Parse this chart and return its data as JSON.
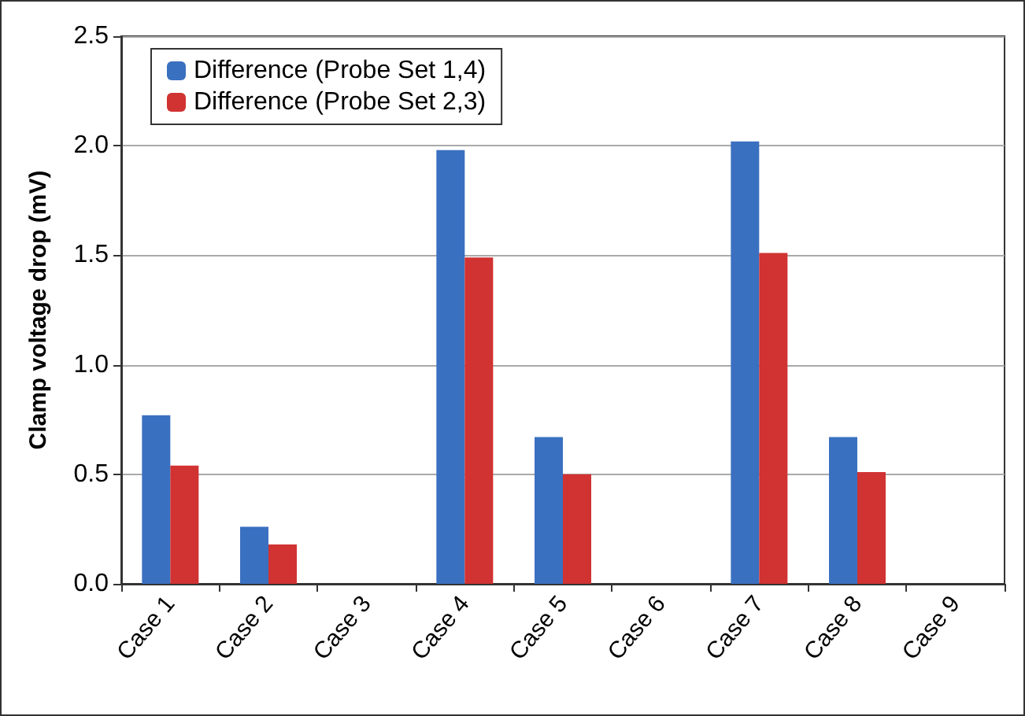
{
  "chart_data": {
    "type": "bar",
    "ylabel": "Clamp voltage drop (mV)",
    "categories": [
      "Case 1",
      "Case 2",
      "Case 3",
      "Case 4",
      "Case 5",
      "Case 6",
      "Case 7",
      "Case 8",
      "Case 9"
    ],
    "series": [
      {
        "name": "Difference (Probe Set 1,4)",
        "color": "#3a70c0",
        "values": [
          0.77,
          0.26,
          0,
          1.98,
          0.67,
          0,
          2.02,
          0.67,
          0
        ]
      },
      {
        "name": "Difference (Probe Set 2,3)",
        "color": "#d13232",
        "values": [
          0.54,
          0.18,
          0,
          1.49,
          0.5,
          0,
          1.51,
          0.51,
          0
        ]
      }
    ],
    "ylim": [
      0,
      2.5
    ],
    "yticks": [
      {
        "value": 0,
        "label": "0.0"
      },
      {
        "value": 0.5,
        "label": "0.5"
      },
      {
        "value": 1,
        "label": "1.0"
      },
      {
        "value": 1.5,
        "label": "1.5"
      },
      {
        "value": 2,
        "label": "2.0"
      },
      {
        "value": 2.5,
        "label": "2.5"
      }
    ],
    "grid": "y",
    "legend": "top left"
  }
}
